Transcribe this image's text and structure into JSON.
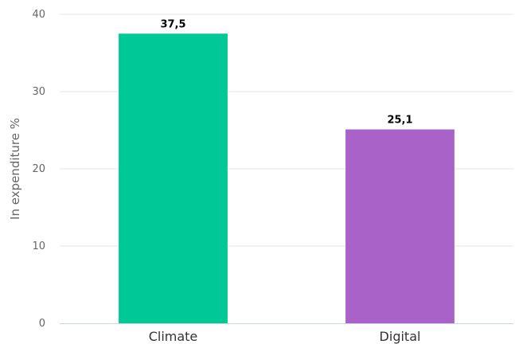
{
  "chart_data": {
    "type": "bar",
    "title": "",
    "xlabel": "",
    "ylabel": "In expenditure %",
    "categories": [
      "Climate",
      "Digital"
    ],
    "values": [
      37.5,
      25.1
    ],
    "value_labels": [
      "37,5",
      "25,1"
    ],
    "ylim": [
      0,
      40
    ],
    "yticks": [
      0,
      10,
      20,
      30,
      40
    ],
    "colors": [
      "#00c896",
      "#a962c8"
    ],
    "grid": true,
    "legend": "none"
  }
}
